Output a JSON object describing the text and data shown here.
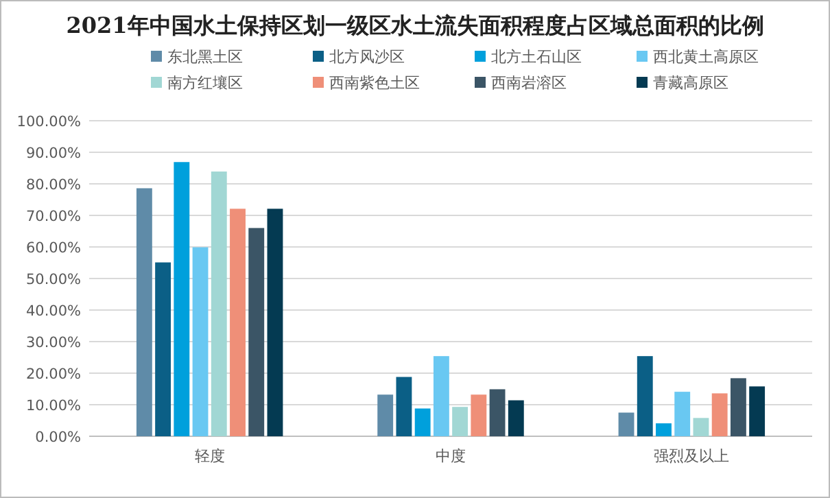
{
  "chart_data": {
    "type": "bar",
    "title": "2021年中国水土保持区划一级区水土流失面积程度占区域总面积的比例",
    "categories": [
      "轻度",
      "中度",
      "强烈及以上"
    ],
    "series": [
      {
        "name": "东北黑土区",
        "color": "#5f8ba8",
        "values": [
          78.6,
          13.2,
          7.5
        ]
      },
      {
        "name": "北方风沙区",
        "color": "#0b5f86",
        "values": [
          55.1,
          18.8,
          25.4
        ]
      },
      {
        "name": "北方土石山区",
        "color": "#00a0dc",
        "values": [
          86.9,
          8.8,
          4.1
        ]
      },
      {
        "name": "西北黄土高原区",
        "color": "#69c8f2",
        "values": [
          59.9,
          25.4,
          14.1
        ]
      },
      {
        "name": "南方红壤区",
        "color": "#a1d7d4",
        "values": [
          83.9,
          9.3,
          5.8
        ]
      },
      {
        "name": "西南紫色土区",
        "color": "#ef8f78",
        "values": [
          72.1,
          13.2,
          13.6
        ]
      },
      {
        "name": "西南岩溶区",
        "color": "#3b5566",
        "values": [
          66.0,
          14.9,
          18.4
        ]
      },
      {
        "name": "青藏高原区",
        "color": "#043a52",
        "values": [
          72.1,
          11.4,
          15.8
        ]
      }
    ],
    "ylim": [
      0,
      100
    ],
    "yticks": [
      {
        "value": 0,
        "label": "0.00%"
      },
      {
        "value": 10,
        "label": "10.00%"
      },
      {
        "value": 20,
        "label": "20.00%"
      },
      {
        "value": 30,
        "label": "30.00%"
      },
      {
        "value": 40,
        "label": "40.00%"
      },
      {
        "value": 50,
        "label": "50.00%"
      },
      {
        "value": 60,
        "label": "60.00%"
      },
      {
        "value": 70,
        "label": "70.00%"
      },
      {
        "value": 80,
        "label": "80.00%"
      },
      {
        "value": 90,
        "label": "90.00%"
      },
      {
        "value": 100,
        "label": "100.00%"
      }
    ],
    "grid": "y",
    "legend": "top"
  }
}
